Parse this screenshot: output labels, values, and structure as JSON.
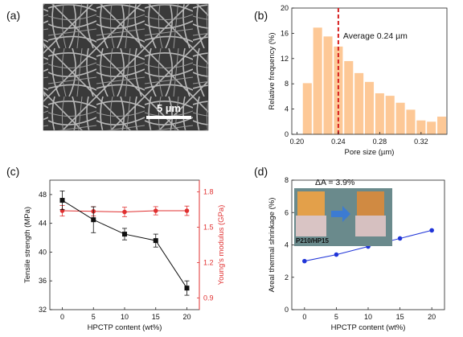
{
  "panels": {
    "a": {
      "label": "(a)",
      "scale_bar": "5 µm",
      "image": "SEM micrograph of fibrous membrane"
    },
    "b": {
      "label": "(b)",
      "annotation": "Average 0.24 µm"
    },
    "c": {
      "label": "(c)"
    },
    "d": {
      "label": "(d)",
      "annotation": "ΔA = 3.9%",
      "inset_label": "P210/HP15"
    }
  },
  "colors": {
    "histogram_bar": "#fdc896",
    "average_line": "#d62020",
    "series_red": "#e03030",
    "series_black": "#111111",
    "series_blue": "#2035d8"
  },
  "chart_data": [
    {
      "panel": "b",
      "type": "bar",
      "x": [
        0.21,
        0.22,
        0.23,
        0.24,
        0.25,
        0.26,
        0.27,
        0.28,
        0.29,
        0.3,
        0.31,
        0.32,
        0.33,
        0.34
      ],
      "values": [
        8.1,
        16.9,
        15.5,
        13.9,
        11.6,
        9.7,
        8.3,
        6.5,
        6.1,
        5.0,
        3.9,
        2.2,
        2.0,
        2.8
      ],
      "xlabel": "Pore size (µm)",
      "ylabel": "Relative frequency (%)",
      "xticks": [
        "0.20",
        "0.24",
        "0.28",
        "0.32"
      ],
      "xtick_values": [
        0.2,
        0.24,
        0.28,
        0.32
      ],
      "yticks": [
        "0",
        "4",
        "8",
        "12",
        "16",
        "20"
      ],
      "ytick_values": [
        0,
        4,
        8,
        12,
        16,
        20
      ],
      "xlim": [
        0.195,
        0.345
      ],
      "ylim": [
        0,
        20
      ],
      "vline": 0.24
    },
    {
      "panel": "c",
      "type": "line",
      "x": [
        0,
        5,
        10,
        15,
        20
      ],
      "series": [
        {
          "axis": "left",
          "values": [
            47.2,
            44.5,
            42.5,
            41.6,
            35.0
          ],
          "errors": [
            1.3,
            1.8,
            0.8,
            0.9,
            1.0
          ]
        },
        {
          "axis": "right",
          "values": [
            1.64,
            1.635,
            1.63,
            1.64,
            1.64
          ],
          "errors": [
            0.045,
            0.04,
            0.04,
            0.035,
            0.04
          ]
        }
      ],
      "xlabel": "HPCTP content (wt%)",
      "ylabel": "Tensile strength (MPa)",
      "y2label": "Young's modulus (GPa)",
      "xticks": [
        "0",
        "5",
        "10",
        "15",
        "20"
      ],
      "yticks": [
        "32",
        "36",
        "40",
        "44",
        "48"
      ],
      "ytick_values": [
        32,
        36,
        40,
        44,
        48
      ],
      "y2ticks": [
        "0.9",
        "1.2",
        "1.5",
        "1.8"
      ],
      "y2tick_values": [
        0.9,
        1.2,
        1.5,
        1.8
      ],
      "xlim": [
        -2,
        22
      ],
      "ylim": [
        32,
        50
      ],
      "y2lim": [
        0.8,
        1.9
      ]
    },
    {
      "panel": "d",
      "type": "line",
      "x": [
        0,
        5,
        10,
        15,
        20
      ],
      "series": [
        {
          "values": [
            3.0,
            3.4,
            3.9,
            4.4,
            4.9
          ]
        }
      ],
      "xlabel": "HPCTP content (wt%)",
      "ylabel": "Areal thermal shrinkage (%)",
      "xticks": [
        "0",
        "5",
        "10",
        "15",
        "20"
      ],
      "yticks": [
        "0",
        "2",
        "4",
        "6",
        "8"
      ],
      "ytick_values": [
        0,
        2,
        4,
        6,
        8
      ],
      "xlim": [
        -2,
        22
      ],
      "ylim": [
        0,
        8
      ]
    }
  ]
}
